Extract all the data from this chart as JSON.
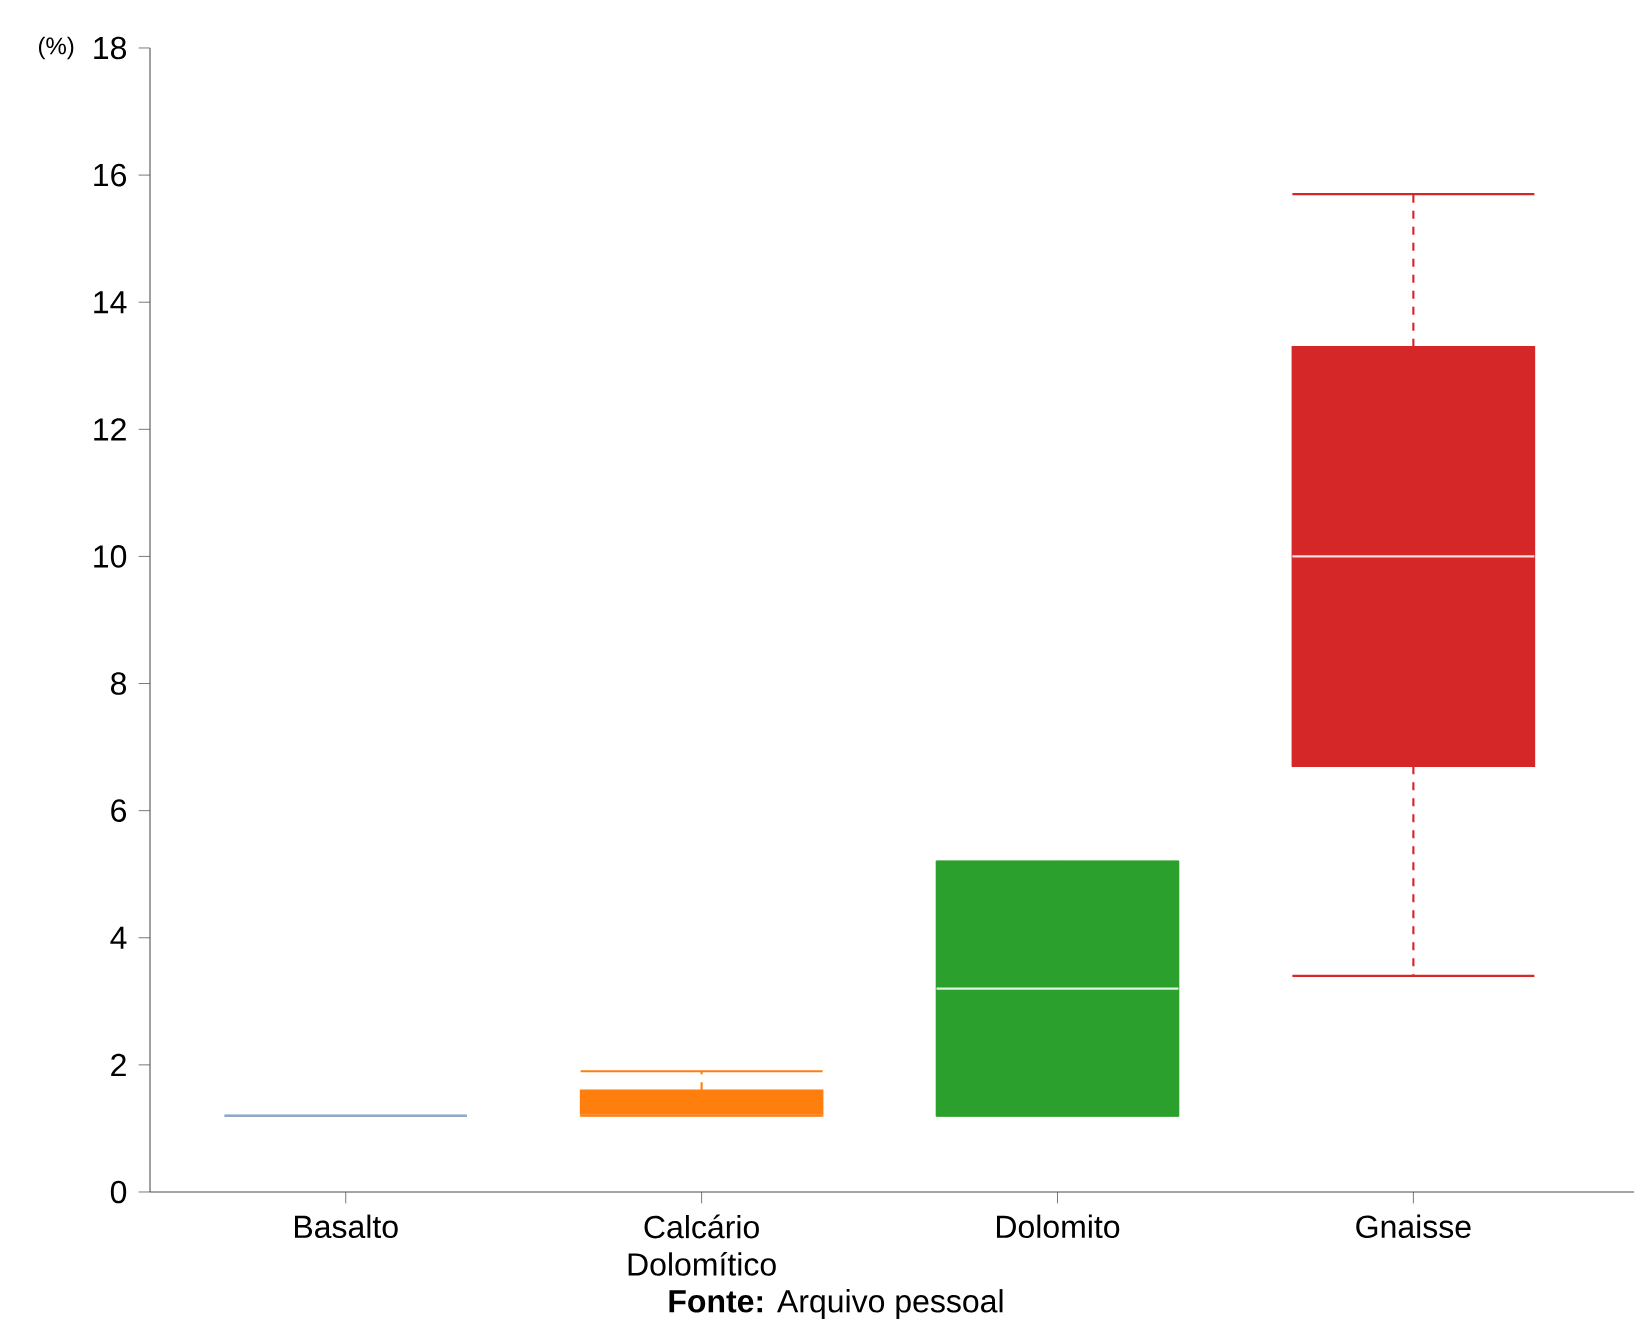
{
  "chart_data": {
    "type": "box",
    "ylabel": "(%)",
    "categories": [
      "Basalto",
      "Calcário Dolomítico",
      "Dolomito",
      "Gnaisse"
    ],
    "colors": [
      "#8fa8c8",
      "#ff7f0e",
      "#2ca02c",
      "#d62728"
    ],
    "boxes": [
      {
        "low": 1.2,
        "q1": 1.2,
        "median": 1.2,
        "q3": 1.2,
        "high": 1.2
      },
      {
        "low": 1.2,
        "q1": 1.2,
        "median": 1.2,
        "q3": 1.6,
        "high": 1.9
      },
      {
        "low": 1.2,
        "q1": 1.2,
        "median": 3.2,
        "q3": 5.2,
        "high": 5.2
      },
      {
        "low": 3.4,
        "q1": 6.7,
        "median": 10.0,
        "q3": 13.3,
        "high": 15.7
      }
    ],
    "ylim": [
      0,
      18
    ],
    "yticks": [
      0,
      2,
      4,
      6,
      8,
      10,
      12,
      14,
      16,
      18
    ],
    "annotations": [
      "**Fonte:** Arquivo pessoal"
    ]
  }
}
